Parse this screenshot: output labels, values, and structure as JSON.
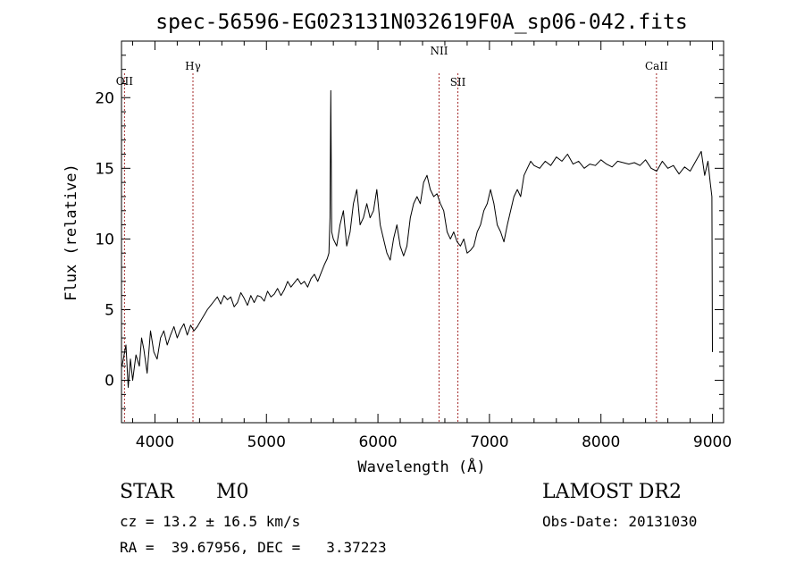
{
  "chart_data": {
    "type": "line",
    "title": "spec-56596-EG023131N032619F0A_sp06-042.fits",
    "xlabel": "Wavelength (Å)",
    "ylabel": "Flux (relative)",
    "xlim": [
      3700,
      9100
    ],
    "ylim": [
      -3,
      24
    ],
    "xticks": [
      4000,
      5000,
      6000,
      7000,
      8000,
      9000
    ],
    "yticks": [
      0,
      5,
      10,
      15,
      20
    ],
    "grid": false,
    "line_color": "#000000",
    "marker_color": "#a52a2a",
    "series": [
      {
        "x": [
          3705,
          3740,
          3760,
          3780,
          3800,
          3830,
          3860,
          3880,
          3900,
          3930,
          3960,
          3990,
          4020,
          4050,
          4080,
          4110,
          4140,
          4170,
          4200,
          4230,
          4260,
          4290,
          4320,
          4350,
          4380,
          4410,
          4440,
          4470,
          4500,
          4530,
          4560,
          4590,
          4620,
          4650,
          4680,
          4710,
          4740,
          4770,
          4800,
          4830,
          4860,
          4890,
          4920,
          4950,
          4980,
          5010,
          5040,
          5070,
          5100,
          5130,
          5160,
          5190,
          5220,
          5250,
          5280,
          5310,
          5340,
          5370,
          5400,
          5430,
          5460,
          5490,
          5520,
          5545,
          5560,
          5570,
          5577,
          5585,
          5600,
          5630,
          5660,
          5690,
          5720,
          5750,
          5780,
          5810,
          5840,
          5870,
          5900,
          5930,
          5960,
          5990,
          6020,
          6050,
          6080,
          6110,
          6140,
          6170,
          6200,
          6230,
          6260,
          6290,
          6320,
          6350,
          6380,
          6410,
          6440,
          6470,
          6500,
          6530,
          6560,
          6590,
          6620,
          6650,
          6680,
          6710,
          6740,
          6770,
          6800,
          6830,
          6860,
          6890,
          6920,
          6950,
          6980,
          7010,
          7040,
          7070,
          7100,
          7130,
          7160,
          7190,
          7220,
          7250,
          7280,
          7310,
          7340,
          7370,
          7400,
          7450,
          7500,
          7550,
          7600,
          7650,
          7700,
          7750,
          7800,
          7850,
          7900,
          7950,
          8000,
          8050,
          8100,
          8150,
          8200,
          8250,
          8300,
          8350,
          8400,
          8450,
          8500,
          8550,
          8600,
          8650,
          8700,
          8750,
          8800,
          8850,
          8900,
          8930,
          8960,
          8980,
          8995,
          9000
        ],
        "y": [
          1.0,
          2.5,
          -0.5,
          1.5,
          0.0,
          1.8,
          1.0,
          3.0,
          2.2,
          0.5,
          3.5,
          2.0,
          1.5,
          3.0,
          3.5,
          2.5,
          3.2,
          3.8,
          3.0,
          3.6,
          4.0,
          3.2,
          3.9,
          3.5,
          3.8,
          4.2,
          4.6,
          5.0,
          5.3,
          5.6,
          5.9,
          5.4,
          6.0,
          5.7,
          5.9,
          5.2,
          5.5,
          6.2,
          5.8,
          5.3,
          6.0,
          5.5,
          6.0,
          5.9,
          5.6,
          6.3,
          5.9,
          6.1,
          6.5,
          6.0,
          6.4,
          7.0,
          6.6,
          6.9,
          7.2,
          6.8,
          7.0,
          6.6,
          7.2,
          7.5,
          7.0,
          7.6,
          8.2,
          8.6,
          9.0,
          11.5,
          20.5,
          10.5,
          10.0,
          9.5,
          11.0,
          12.0,
          9.5,
          10.5,
          12.5,
          13.5,
          11.0,
          11.5,
          12.5,
          11.5,
          12.0,
          13.5,
          11.0,
          10.0,
          9.0,
          8.5,
          10.0,
          11.0,
          9.5,
          8.8,
          9.5,
          11.5,
          12.5,
          13.0,
          12.5,
          14.0,
          14.5,
          13.5,
          13.0,
          13.2,
          12.5,
          12.0,
          10.5,
          10.0,
          10.5,
          9.8,
          9.5,
          10.0,
          9.0,
          9.2,
          9.5,
          10.5,
          11.0,
          12.0,
          12.5,
          13.5,
          12.5,
          11.0,
          10.5,
          9.8,
          11.0,
          12.0,
          13.0,
          13.5,
          13.0,
          14.5,
          15.0,
          15.5,
          15.2,
          15.0,
          15.5,
          15.2,
          15.8,
          15.5,
          16.0,
          15.3,
          15.5,
          15.0,
          15.3,
          15.2,
          15.6,
          15.3,
          15.1,
          15.5,
          15.4,
          15.3,
          15.4,
          15.2,
          15.6,
          15.0,
          14.8,
          15.5,
          15.0,
          15.2,
          14.6,
          15.1,
          14.8,
          15.5,
          16.2,
          14.5,
          15.5,
          14.0,
          13.0,
          2.0
        ]
      }
    ],
    "markers": [
      {
        "label": "OII",
        "x": 3727
      },
      {
        "label": "Hγ",
        "x": 4341
      },
      {
        "label": "NII",
        "x": 6548
      },
      {
        "label": "SII",
        "x": 6717
      },
      {
        "label": "CaII",
        "x": 8498
      }
    ]
  },
  "info": {
    "class": "STAR",
    "subclass": "M0",
    "survey": "LAMOST DR2",
    "cz": "cz = 13.2 ± 16.5 km/s",
    "obs_date": "Obs-Date: 20131030",
    "coords": "RA =  39.67956, DEC =   3.37223"
  }
}
